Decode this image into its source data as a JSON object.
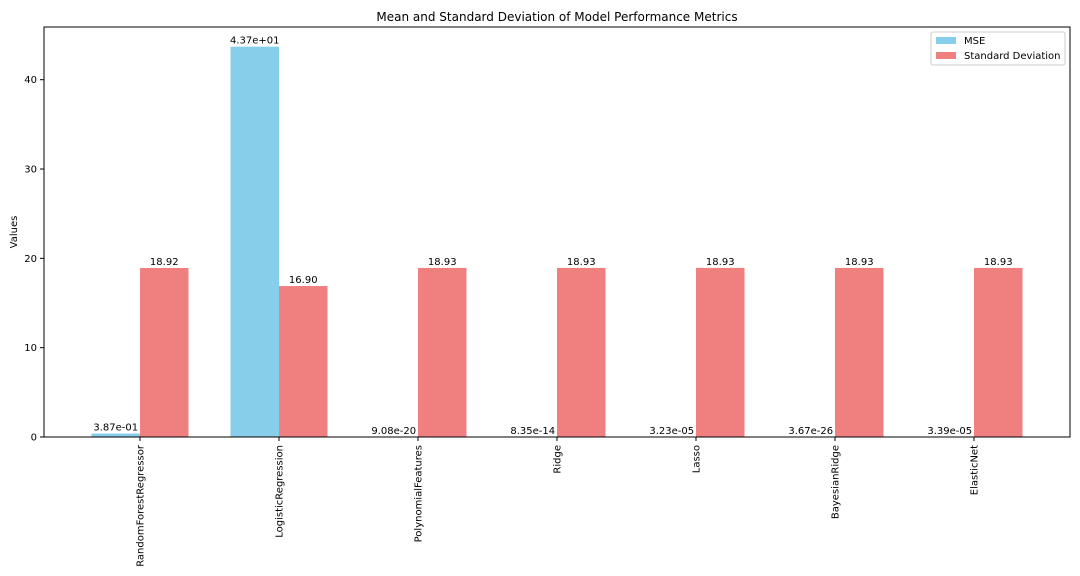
{
  "chart_data": {
    "type": "bar",
    "title": "Mean and Standard Deviation of Model Performance Metrics",
    "xlabel": "",
    "ylabel": "Values",
    "ylim": [
      0,
      45.9
    ],
    "yticks": [
      0,
      10,
      20,
      30,
      40
    ],
    "grid": false,
    "legend_position": "top-right",
    "categories": [
      "RandomForestRegressor",
      "LogisticRegression",
      "PolynomialFeatures",
      "Ridge",
      "Lasso",
      "BayesianRidge",
      "ElasticNet"
    ],
    "series": [
      {
        "name": "MSE",
        "color": "#87ceeb",
        "values": [
          0.387,
          43.7,
          9.08e-20,
          8.35e-14,
          3.23e-05,
          3.67e-26,
          3.39e-05
        ],
        "labels": [
          "3.87e-01",
          "4.37e+01",
          "9.08e-20",
          "8.35e-14",
          "3.23e-05",
          "3.67e-26",
          "3.39e-05"
        ]
      },
      {
        "name": "Standard Deviation",
        "color": "#f08080",
        "values": [
          18.92,
          16.9,
          18.93,
          18.93,
          18.93,
          18.93,
          18.93
        ],
        "labels": [
          "18.92",
          "16.90",
          "18.93",
          "18.93",
          "18.93",
          "18.93",
          "18.93"
        ]
      }
    ]
  }
}
